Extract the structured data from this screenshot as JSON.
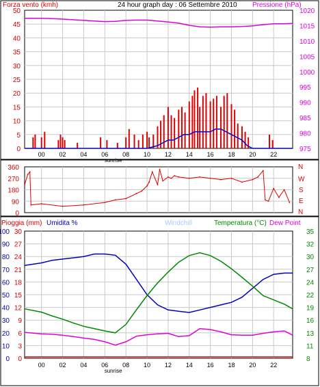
{
  "header": {
    "left_label": "Forza vento (kmh)",
    "title": "24 hour graph day : 06 Settembre 2010",
    "right_label": "Pressione (hPa)"
  },
  "legend_bottom": {
    "rain": "Pioggia (mm)",
    "humidity": "Umidita %",
    "windchill": "Windchill",
    "temperature": "Temperatura (°C)",
    "dewpoint": "Dew Point"
  },
  "x_axis": {
    "hour_labels": [
      "00",
      "02",
      "04",
      "06",
      "08",
      "10",
      "12",
      "14",
      "16",
      "18",
      "20",
      "22"
    ],
    "sunrise_label": "sunrise",
    "sunrise_hour": 6.8
  },
  "colors": {
    "wind_speed": "#dd0000",
    "gust": "#dd0000",
    "wind_avg": "#0000cc",
    "pressure": "#dd00dd",
    "direction": "#dd0000",
    "humidity": "#0000bb",
    "temperature": "#008800",
    "dewpoint": "#dd00dd",
    "rain": "#dd0000",
    "windchill": "#88aaff",
    "grid": "#c8c8c8",
    "axis_text": "#dd0000"
  },
  "chart_data": [
    {
      "type": "line",
      "title": "24 hour graph day : 06 Settembre 2010",
      "xlabel": "",
      "ylabel": "Forza vento (kmh)",
      "ylabel_right": "Pressione (hPa)",
      "x_hour_range": [
        -1.6,
        23.8
      ],
      "ylim": [
        0,
        50
      ],
      "y_ticks": [
        0,
        5,
        10,
        15,
        20,
        25,
        30,
        35,
        40,
        45,
        50
      ],
      "ylim_right": [
        975,
        1020
      ],
      "y_ticks_right": [
        975,
        980,
        985,
        990,
        995,
        1000,
        1005,
        1010,
        1015,
        1020
      ],
      "grid": true,
      "series": [
        {
          "name": "Pressione (hPa)",
          "axis": "right",
          "x": [
            -1.6,
            0,
            1,
            2,
            3,
            4,
            5,
            6,
            7,
            8,
            9,
            10,
            11,
            12,
            13,
            14,
            15,
            16,
            17,
            18,
            19,
            20,
            21,
            22,
            23,
            23.8
          ],
          "y": [
            1017.4,
            1017.4,
            1017.3,
            1017.1,
            1016.9,
            1016.7,
            1016.5,
            1016.3,
            1016.4,
            1016.7,
            1016.8,
            1016.8,
            1016.5,
            1016.2,
            1015.8,
            1015.1,
            1014.6,
            1014.5,
            1014.6,
            1014.6,
            1014.7,
            1014.9,
            1015.3,
            1015.6,
            1015.6,
            1015.7
          ]
        },
        {
          "name": "avg",
          "axis": "left",
          "x": [
            -1.6,
            0,
            2,
            4,
            6,
            8,
            9,
            10,
            11,
            11.5,
            12,
            12.5,
            13,
            13.5,
            14,
            14.5,
            15,
            15.5,
            16,
            16.5,
            17,
            17.5,
            18,
            18.5,
            19,
            19.5,
            20,
            21,
            22,
            23.8
          ],
          "y": [
            0,
            0,
            0,
            0,
            0,
            0,
            0,
            0,
            1,
            2,
            3,
            3,
            4,
            5,
            5,
            6,
            6,
            6,
            6,
            7,
            7,
            6,
            5,
            4,
            3,
            1,
            0,
            0,
            0,
            0
          ]
        },
        {
          "name": "gust",
          "axis": "left",
          "x": [
            -1.6,
            -0.8,
            -0.6,
            0,
            0.3,
            1.6,
            1.8,
            2,
            2.2,
            3.4,
            5.6,
            6.2,
            7.2,
            8,
            8.3,
            8.8,
            9.2,
            9.6,
            10,
            10.2,
            10.6,
            11,
            11.3,
            11.6,
            12,
            12.3,
            12.6,
            13,
            13.3,
            13.6,
            14,
            14.3,
            14.5,
            14.8,
            15,
            15.3,
            15.6,
            16,
            16.3,
            16.6,
            17,
            17.3,
            17.6,
            18,
            18.3,
            18.6,
            19,
            19.3,
            19.6,
            21.6,
            21.9
          ],
          "y": [
            0,
            4,
            5,
            4,
            6,
            3,
            5,
            4,
            3,
            2,
            4,
            3,
            2,
            4,
            7,
            5,
            3,
            5,
            6,
            4,
            5,
            8,
            10,
            12,
            15,
            12,
            11,
            14,
            15,
            13,
            17,
            19,
            21,
            22,
            15,
            19,
            20,
            17,
            18,
            19,
            15,
            19,
            20,
            16,
            14,
            9,
            8,
            6,
            4,
            5,
            3
          ]
        }
      ]
    },
    {
      "type": "scatter",
      "ylabel": "",
      "ylabel_right": "N W S E N",
      "x_hour_range": [
        -1.6,
        23.8
      ],
      "ylim": [
        0,
        360
      ],
      "y_ticks": [
        0,
        90,
        180,
        270,
        360
      ],
      "series": [
        {
          "name": "direction",
          "x": [
            -1.6,
            -1.3,
            -1.1,
            -1,
            0,
            2,
            4,
            6,
            7,
            8,
            9,
            9.5,
            10,
            10.2,
            10.5,
            11,
            11.2,
            11.5,
            12,
            12.3,
            12.6,
            13,
            14,
            15,
            16,
            17,
            18,
            19,
            20,
            20.5,
            21,
            21.2,
            21.5,
            22,
            22.5,
            23,
            23.5
          ],
          "y": [
            220,
            300,
            320,
            60,
            70,
            50,
            60,
            80,
            100,
            110,
            150,
            170,
            210,
            240,
            320,
            220,
            340,
            250,
            280,
            270,
            290,
            280,
            270,
            280,
            270,
            260,
            270,
            240,
            260,
            280,
            330,
            100,
            90,
            190,
            120,
            180,
            80
          ]
        }
      ]
    },
    {
      "type": "line",
      "ylabel": "Pioggia (mm)",
      "ylabel_secondary": "Umidita %",
      "ylabel_right": "Temperatura (°C)",
      "x_hour_range": [
        -1.6,
        23.8
      ],
      "ylim_humidity": [
        0,
        100
      ],
      "y_ticks_humidity": [
        0,
        10,
        20,
        30,
        40,
        50,
        60,
        70,
        80,
        90,
        100
      ],
      "ylim_rain": [
        0,
        30
      ],
      "y_ticks_rain": [
        0,
        3,
        6,
        9,
        12,
        15,
        18,
        21,
        24,
        27,
        30
      ],
      "ylim_right": [
        8,
        35
      ],
      "y_ticks_right": [
        8,
        11,
        13,
        16,
        19,
        22,
        24,
        27,
        30,
        32,
        35
      ],
      "grid": true,
      "series": [
        {
          "name": "Umidita %",
          "axis": "left",
          "x": [
            -1.6,
            0,
            1,
            2,
            3,
            4,
            5,
            6,
            7,
            8,
            9,
            10,
            11,
            12,
            13,
            14,
            15,
            16,
            17,
            18,
            19,
            20,
            21,
            22,
            23,
            23.8
          ],
          "y": [
            73,
            75,
            77,
            78,
            79,
            80,
            82,
            82,
            81,
            74,
            62,
            50,
            42,
            38,
            37,
            36,
            38,
            40,
            42,
            44,
            48,
            55,
            62,
            66,
            67,
            67
          ]
        },
        {
          "name": "Temperatura (°C)",
          "axis": "right",
          "x": [
            -1.6,
            0,
            1,
            2,
            3,
            4,
            5,
            6,
            7,
            8,
            9,
            10,
            11,
            12,
            13,
            14,
            15,
            16,
            17,
            18,
            19,
            20,
            21,
            22,
            23,
            23.8
          ],
          "y": [
            18.5,
            17.8,
            17.0,
            16.3,
            15.5,
            14.8,
            14.3,
            13.8,
            13.4,
            15.2,
            18.3,
            21.3,
            24.0,
            26.3,
            28.4,
            29.8,
            30.4,
            29.8,
            28.6,
            27.0,
            25.2,
            23.3,
            21.3,
            20.4,
            19.5,
            18.5
          ]
        },
        {
          "name": "Dew Point",
          "axis": "right",
          "x": [
            -1.6,
            0,
            1,
            2,
            3,
            4,
            5,
            6,
            7,
            8,
            9,
            10,
            11,
            12,
            13,
            14,
            15,
            16,
            17,
            18,
            19,
            20,
            21,
            22,
            23,
            23.8
          ],
          "y": [
            13.5,
            13.2,
            13.1,
            12.9,
            12.6,
            12.3,
            12.0,
            11.5,
            10.8,
            11.5,
            12.7,
            13.0,
            13.2,
            13.3,
            12.6,
            12.8,
            14.3,
            14.1,
            13.6,
            13.0,
            12.9,
            12.9,
            13.3,
            13.6,
            13.8,
            12.9
          ]
        },
        {
          "name": "Pioggia (mm)",
          "axis": "left",
          "x": [
            -1.6,
            23.8
          ],
          "y": [
            0,
            0
          ]
        }
      ]
    }
  ]
}
